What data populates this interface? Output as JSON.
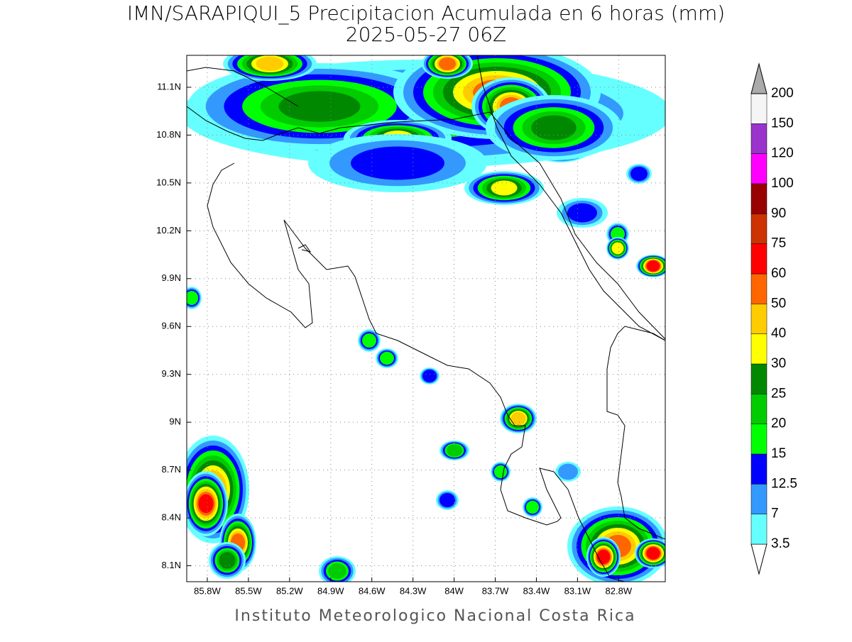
{
  "chart_data": {
    "type": "map",
    "title": "IMN/SARAPIQUI_5 Precipitacion Acumulada en 6 horas (mm)",
    "subtitle": "2025-05-27 06Z",
    "footer": "Instituto Meteorologico Nacional Costa Rica",
    "xlim": [
      -85.95,
      -82.46
    ],
    "ylim": [
      8.0,
      11.3
    ],
    "xticks": [
      {
        "value": -85.8,
        "label": "85.8W"
      },
      {
        "value": -85.5,
        "label": "85.5W"
      },
      {
        "value": -85.2,
        "label": "85.2W"
      },
      {
        "value": -84.9,
        "label": "84.9W"
      },
      {
        "value": -84.6,
        "label": "84.6W"
      },
      {
        "value": -84.3,
        "label": "84.3W"
      },
      {
        "value": -84,
        "label": "84W"
      },
      {
        "value": -83.7,
        "label": "83.7W"
      },
      {
        "value": -83.4,
        "label": "83.4W"
      },
      {
        "value": -83.1,
        "label": "83.1W"
      },
      {
        "value": -82.8,
        "label": "82.8W"
      }
    ],
    "yticks": [
      {
        "value": 8.1,
        "label": "8.1N"
      },
      {
        "value": 8.4,
        "label": "8.4N"
      },
      {
        "value": 8.7,
        "label": "8.7N"
      },
      {
        "value": 9,
        "label": "9N"
      },
      {
        "value": 9.3,
        "label": "9.3N"
      },
      {
        "value": 9.6,
        "label": "9.6N"
      },
      {
        "value": 9.9,
        "label": "9.9N"
      },
      {
        "value": 10.2,
        "label": "10.2N"
      },
      {
        "value": 10.5,
        "label": "10.5N"
      },
      {
        "value": 10.8,
        "label": "10.8N"
      },
      {
        "value": 11.1,
        "label": "11.1N"
      }
    ],
    "grid": true,
    "colorbar": {
      "levels": [
        3.5,
        7,
        12.5,
        15,
        20,
        25,
        30,
        40,
        50,
        60,
        75,
        90,
        100,
        120,
        150,
        200
      ],
      "colors": [
        "#ffffff",
        "#66ffff",
        "#3399ff",
        "#0000ff",
        "#00ff00",
        "#00cc00",
        "#008800",
        "#ffff00",
        "#ffcc00",
        "#ff6600",
        "#ff0000",
        "#cc3300",
        "#990000",
        "#ff00ff",
        "#9933cc",
        "#f5f5f5",
        "#aaaaaa"
      ]
    }
  }
}
